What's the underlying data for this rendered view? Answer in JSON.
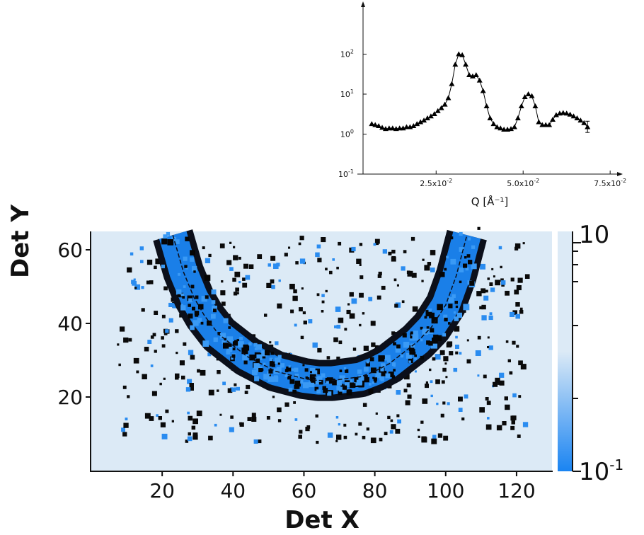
{
  "chart_data": [
    {
      "type": "line",
      "title": "",
      "xlabel": "Q [Å⁻¹]",
      "ylabel": "",
      "xscale": "linear",
      "yscale": "log",
      "xlim": [
        0.004,
        0.077
      ],
      "ylim": [
        0.1,
        1000
      ],
      "xticks": [
        {
          "value": 0.025,
          "label": "2.5x10",
          "exp": "-2"
        },
        {
          "value": 0.05,
          "label": "5.0x10",
          "exp": "-2"
        },
        {
          "value": 0.075,
          "label": "7.5x10",
          "exp": "-2"
        }
      ],
      "yticks": [
        {
          "value": 0.1,
          "label": "10",
          "exp": "-1"
        },
        {
          "value": 1,
          "label": "10",
          "exp": "0"
        },
        {
          "value": 10,
          "label": "10",
          "exp": "1"
        },
        {
          "value": 100,
          "label": "10",
          "exp": "2"
        }
      ],
      "marker": "triangle",
      "color": "#000000",
      "series": [
        {
          "x": [
            0.0065,
            0.0075,
            0.0085,
            0.0095,
            0.0105,
            0.0115,
            0.0125,
            0.0135,
            0.0145,
            0.0155,
            0.0165,
            0.0175,
            0.0185,
            0.0195,
            0.0205,
            0.0215,
            0.0225,
            0.0235,
            0.0245,
            0.0255,
            0.0265,
            0.0275,
            0.0285,
            0.0295,
            0.0305,
            0.0315,
            0.0325,
            0.0335,
            0.0345,
            0.0355,
            0.0365,
            0.0375,
            0.0385,
            0.0395,
            0.0405,
            0.0415,
            0.0425,
            0.0435,
            0.0445,
            0.0455,
            0.0465,
            0.0475,
            0.0485,
            0.0495,
            0.0505,
            0.0515,
            0.0525,
            0.0535,
            0.0545,
            0.0555,
            0.0565,
            0.0575,
            0.0585,
            0.0595,
            0.0605,
            0.0615,
            0.0625,
            0.0635,
            0.0645,
            0.0655,
            0.0665,
            0.0675,
            0.0685
          ],
          "y": [
            1.8,
            1.7,
            1.6,
            1.45,
            1.35,
            1.4,
            1.4,
            1.35,
            1.4,
            1.4,
            1.5,
            1.5,
            1.6,
            1.8,
            2.0,
            2.2,
            2.5,
            2.8,
            3.2,
            3.8,
            4.5,
            5.5,
            8,
            18,
            55,
            100,
            95,
            55,
            30,
            28,
            30,
            22,
            12,
            5,
            2.5,
            1.8,
            1.5,
            1.4,
            1.3,
            1.3,
            1.35,
            1.5,
            2.5,
            5,
            8.5,
            10,
            9,
            5,
            2,
            1.7,
            1.7,
            1.7,
            2.3,
            3,
            3.3,
            3.4,
            3.3,
            3.1,
            2.8,
            2.5,
            2.2,
            1.9,
            1.5
          ],
          "err_last": [
            1.1,
            2.1
          ]
        }
      ]
    },
    {
      "type": "heatmap",
      "title": "",
      "xlabel": "Det X",
      "ylabel": "Det Y",
      "xlim": [
        0,
        130
      ],
      "ylim": [
        0,
        65
      ],
      "xticks": [
        20,
        40,
        60,
        80,
        100,
        120
      ],
      "yticks": [
        20,
        40,
        60
      ],
      "colorscale": [
        "#dceaf6",
        "#1a84f2"
      ],
      "colorbar": {
        "scale": "log",
        "min_label": "10",
        "min_exp": "-1",
        "max_label": "10",
        "max_exp": ""
      },
      "ring_path": {
        "x": [
          23,
          26,
          29,
          32,
          36,
          40,
          44,
          48,
          52,
          56,
          60,
          64,
          68,
          72,
          76,
          80,
          84,
          88,
          92,
          96,
          100,
          103,
          106
        ],
        "y": [
          64,
          54,
          47,
          42,
          37,
          34,
          31,
          29,
          27,
          26,
          25,
          24.5,
          24.5,
          25,
          25.5,
          27,
          29,
          32,
          35,
          39,
          45,
          53,
          64
        ]
      }
    }
  ]
}
